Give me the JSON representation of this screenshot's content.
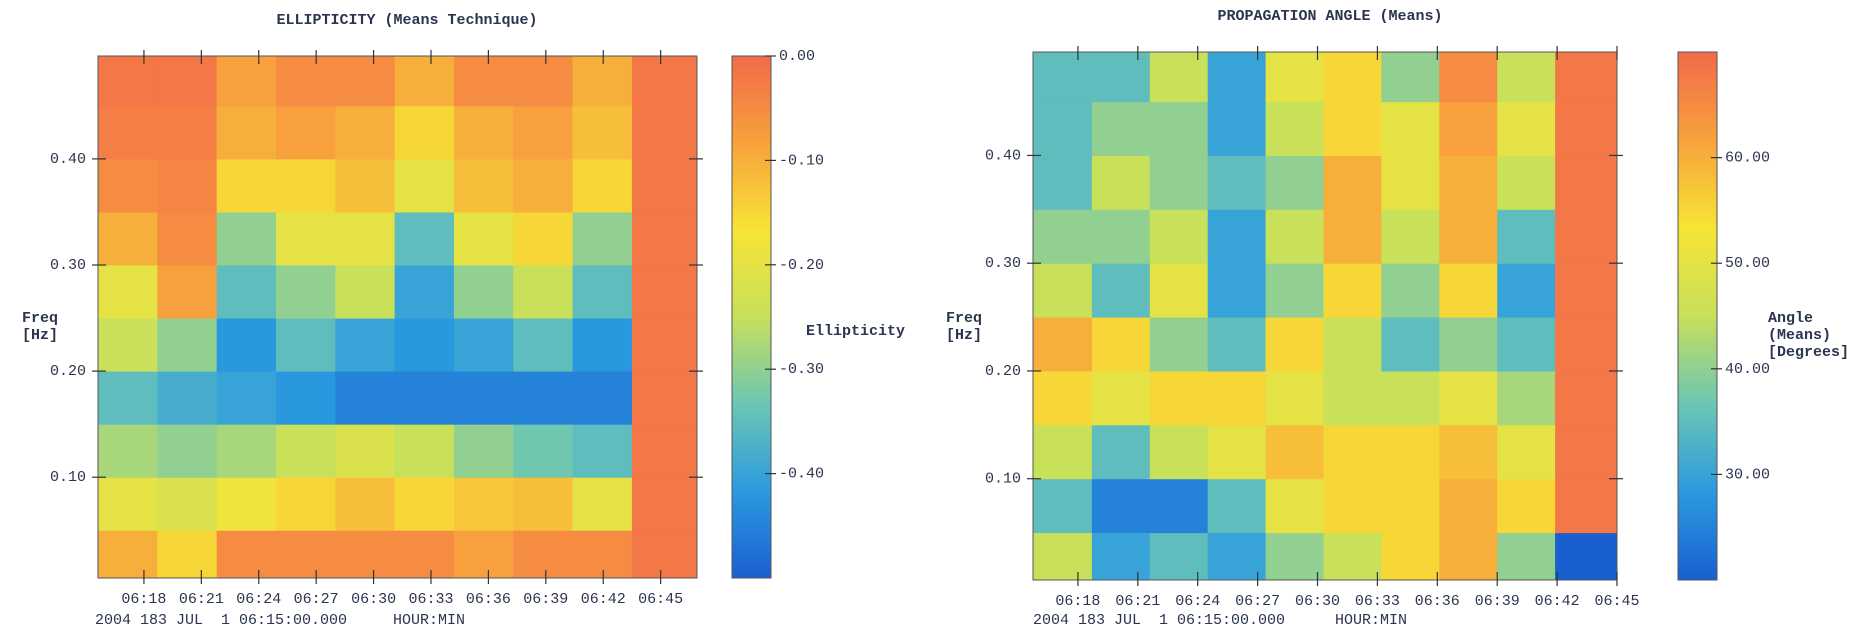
{
  "chart_data": [
    {
      "type": "heatmap",
      "title": "ELLIPTICITY (Means Technique)",
      "y_label": [
        "Freq",
        "[Hz]"
      ],
      "x_label": "HOUR:MIN",
      "footer": "2004 183 JUL  1 06:15:00.000",
      "xlim": [
        15.6,
        46.9
      ],
      "xticks": [
        {
          "value": 18,
          "label": "06:18"
        },
        {
          "value": 21,
          "label": "06:21"
        },
        {
          "value": 24,
          "label": "06:24"
        },
        {
          "value": 27,
          "label": "06:27"
        },
        {
          "value": 30,
          "label": "06:30"
        },
        {
          "value": 33,
          "label": "06:33"
        },
        {
          "value": 36,
          "label": "06:36"
        },
        {
          "value": 39,
          "label": "06:39"
        },
        {
          "value": 42,
          "label": "06:42"
        },
        {
          "value": 45,
          "label": "06:45"
        }
      ],
      "ylim": [
        0.005,
        0.497
      ],
      "yticks": [
        {
          "value": 0.1,
          "label": "0.10"
        },
        {
          "value": 0.2,
          "label": "0.20"
        },
        {
          "value": 0.3,
          "label": "0.30"
        },
        {
          "value": 0.4,
          "label": "0.40"
        }
      ],
      "xbins": [
        15.6,
        18.7,
        21.8,
        24.9,
        28.0,
        31.1,
        34.2,
        37.3,
        40.4,
        43.5,
        46.9
      ],
      "ybins": [
        0.005,
        0.05,
        0.1,
        0.15,
        0.2,
        0.25,
        0.3,
        0.35,
        0.4,
        0.45,
        0.497
      ],
      "values": [
        [
          -0.1,
          -0.15,
          -0.05,
          -0.05,
          -0.05,
          -0.05,
          -0.08,
          -0.05,
          -0.05,
          -0.02
        ],
        [
          -0.2,
          -0.22,
          -0.18,
          -0.15,
          -0.12,
          -0.15,
          -0.13,
          -0.12,
          -0.2,
          -0.02
        ],
        [
          -0.28,
          -0.3,
          -0.28,
          -0.25,
          -0.22,
          -0.25,
          -0.3,
          -0.33,
          -0.35,
          -0.02
        ],
        [
          -0.35,
          -0.38,
          -0.4,
          -0.42,
          -0.45,
          -0.45,
          -0.45,
          -0.45,
          -0.45,
          -0.02
        ],
        [
          -0.25,
          -0.3,
          -0.42,
          -0.35,
          -0.4,
          -0.42,
          -0.4,
          -0.35,
          -0.42,
          -0.02
        ],
        [
          -0.2,
          -0.08,
          -0.35,
          -0.3,
          -0.25,
          -0.4,
          -0.3,
          -0.25,
          -0.35,
          -0.02
        ],
        [
          -0.1,
          -0.05,
          -0.3,
          -0.2,
          -0.2,
          -0.35,
          -0.2,
          -0.15,
          -0.3,
          -0.02
        ],
        [
          -0.05,
          -0.04,
          -0.15,
          -0.15,
          -0.12,
          -0.2,
          -0.12,
          -0.1,
          -0.15,
          -0.02
        ],
        [
          -0.03,
          -0.03,
          -0.1,
          -0.08,
          -0.1,
          -0.15,
          -0.1,
          -0.08,
          -0.12,
          -0.02
        ],
        [
          -0.02,
          -0.02,
          -0.08,
          -0.05,
          -0.05,
          -0.1,
          -0.05,
          -0.05,
          -0.1,
          -0.02
        ]
      ],
      "colorscale": [
        "#1a5fcf",
        "#2b9ae0",
        "#6cc6b4",
        "#c8e05a",
        "#f7e436",
        "#f7a23c",
        "#f26a4a"
      ],
      "colorbar": {
        "label": [
          "Ellipticity"
        ],
        "lim": [
          -0.5,
          0
        ],
        "ticks": [
          {
            "value": 0,
            "label": "0.00"
          },
          {
            "value": -0.1,
            "label": "-0.10"
          },
          {
            "value": -0.2,
            "label": "-0.20"
          },
          {
            "value": -0.3,
            "label": "-0.30"
          },
          {
            "value": -0.4,
            "label": "-0.40"
          }
        ]
      }
    },
    {
      "type": "heatmap",
      "title": "PROPAGATION ANGLE (Means)",
      "y_label": [
        "Freq",
        "[Hz]"
      ],
      "x_label": "HOUR:MIN",
      "footer": "2004 183 JUL  1 06:15:00.000",
      "xlim": [
        15.75,
        45.0
      ],
      "xticks": [
        {
          "value": 18,
          "label": "06:18"
        },
        {
          "value": 21,
          "label": "06:21"
        },
        {
          "value": 24,
          "label": "06:24"
        },
        {
          "value": 27,
          "label": "06:27"
        },
        {
          "value": 30,
          "label": "06:30"
        },
        {
          "value": 33,
          "label": "06:33"
        },
        {
          "value": 36,
          "label": "06:36"
        },
        {
          "value": 39,
          "label": "06:39"
        },
        {
          "value": 42,
          "label": "06:42"
        },
        {
          "value": 45,
          "label": "06:45"
        }
      ],
      "ylim": [
        0.006,
        0.496
      ],
      "yticks": [
        {
          "value": 0.1,
          "label": "0.10"
        },
        {
          "value": 0.2,
          "label": "0.20"
        },
        {
          "value": 0.3,
          "label": "0.30"
        },
        {
          "value": 0.4,
          "label": "0.40"
        }
      ],
      "xbins": [
        15.75,
        18.7,
        21.6,
        24.5,
        27.4,
        30.3,
        33.2,
        36.1,
        39.0,
        41.9,
        45.0
      ],
      "ybins": [
        0.006,
        0.05,
        0.1,
        0.15,
        0.2,
        0.25,
        0.3,
        0.35,
        0.4,
        0.45,
        0.496
      ],
      "values": [
        [
          45,
          30,
          35,
          30,
          40,
          45,
          55,
          60,
          40,
          20
        ],
        [
          35,
          25,
          25,
          35,
          50,
          55,
          55,
          60,
          55,
          68
        ],
        [
          45,
          35,
          45,
          50,
          58,
          55,
          55,
          58,
          50,
          68
        ],
        [
          55,
          50,
          55,
          55,
          50,
          45,
          45,
          50,
          42,
          68
        ],
        [
          60,
          55,
          40,
          35,
          55,
          45,
          35,
          40,
          35,
          68
        ],
        [
          45,
          35,
          50,
          30,
          40,
          55,
          40,
          55,
          30,
          68
        ],
        [
          40,
          40,
          45,
          30,
          45,
          60,
          45,
          60,
          35,
          68
        ],
        [
          35,
          45,
          40,
          35,
          40,
          60,
          50,
          60,
          45,
          68
        ],
        [
          35,
          40,
          40,
          30,
          45,
          55,
          50,
          62,
          50,
          68
        ],
        [
          35,
          35,
          45,
          30,
          50,
          55,
          40,
          65,
          45,
          68
        ]
      ],
      "colorscale": [
        "#1a5fcf",
        "#2b9ae0",
        "#6cc6b4",
        "#c8e05a",
        "#f7e436",
        "#f7a23c",
        "#f26a4a"
      ],
      "colorbar": {
        "label": [
          "Angle",
          "(Means)",
          "[Degrees]"
        ],
        "lim": [
          20,
          70
        ],
        "ticks": [
          {
            "value": 30,
            "label": "30.00"
          },
          {
            "value": 40,
            "label": "40.00"
          },
          {
            "value": 50,
            "label": "50.00"
          },
          {
            "value": 60,
            "label": "60.00"
          }
        ]
      }
    }
  ]
}
